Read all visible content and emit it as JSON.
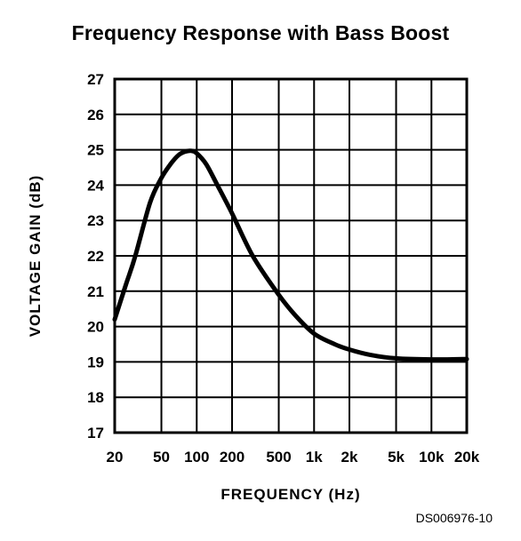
{
  "chart_data": {
    "type": "line",
    "title": "Frequency Response with Bass Boost",
    "xlabel": "FREQUENCY (Hz)",
    "ylabel": "VOLTAGE GAIN (dB)",
    "xscale": "log",
    "xlim": [
      20,
      20000
    ],
    "ylim": [
      17,
      27
    ],
    "grid": true,
    "x_ticks": [
      {
        "value": 20,
        "label": "20"
      },
      {
        "value": 50,
        "label": "50"
      },
      {
        "value": 100,
        "label": "100"
      },
      {
        "value": 200,
        "label": "200"
      },
      {
        "value": 500,
        "label": "500"
      },
      {
        "value": 1000,
        "label": "1k"
      },
      {
        "value": 2000,
        "label": "2k"
      },
      {
        "value": 5000,
        "label": "5k"
      },
      {
        "value": 10000,
        "label": "10k"
      },
      {
        "value": 20000,
        "label": "20k"
      }
    ],
    "y_ticks": [
      17,
      18,
      19,
      20,
      21,
      22,
      23,
      24,
      25,
      26,
      27
    ],
    "series": [
      {
        "x": [
          20,
          25,
          30,
          40,
          50,
          60,
          70,
          80,
          90,
          100,
          120,
          150,
          200,
          300,
          500,
          700,
          1000,
          1500,
          2000,
          3000,
          5000,
          10000,
          20000
        ],
        "y": [
          20.2,
          21.2,
          22.0,
          23.5,
          24.2,
          24.6,
          24.85,
          24.95,
          24.97,
          24.9,
          24.6,
          24.0,
          23.2,
          22.0,
          20.9,
          20.3,
          19.8,
          19.5,
          19.35,
          19.2,
          19.1,
          19.07,
          19.08
        ]
      }
    ]
  },
  "footnote": "DS006976-10"
}
